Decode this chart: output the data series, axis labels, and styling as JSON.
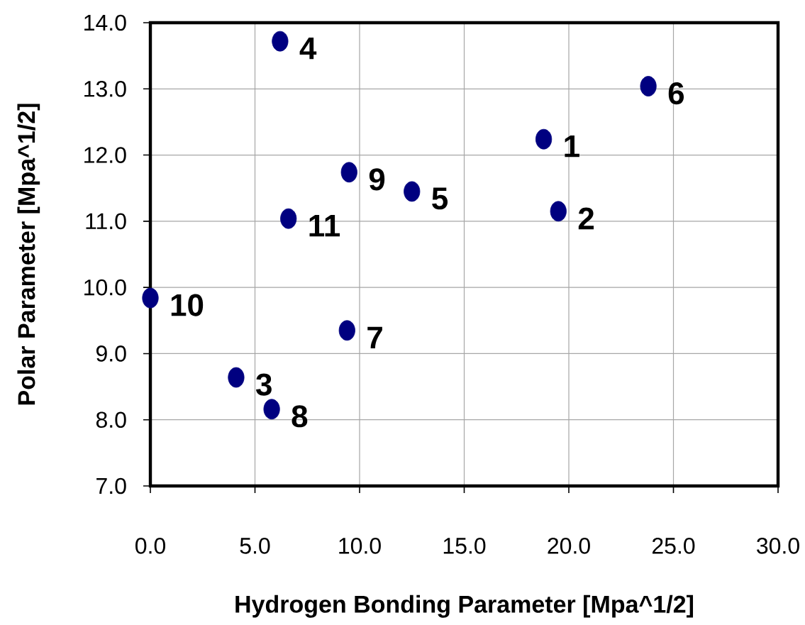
{
  "chart_data": {
    "type": "scatter",
    "xlabel": "Hydrogen Bonding Parameter [Mpa^1/2]",
    "ylabel": "Polar Parameter [Mpa^1/2]",
    "x": [
      18.8,
      19.5,
      4.1,
      6.2,
      12.5,
      23.8,
      9.4,
      5.8,
      9.5,
      0.0,
      6.6
    ],
    "series": [
      {
        "color": "#000080",
        "values": [
          12.24,
          11.15,
          8.64,
          13.72,
          11.45,
          13.04,
          9.35,
          8.16,
          11.74,
          9.84,
          11.04
        ]
      }
    ],
    "xlim": [
      0,
      30
    ],
    "ylim": [
      7,
      14
    ],
    "xticks": [
      {
        "value": 0,
        "label": "0.0"
      },
      {
        "value": 5,
        "label": "5.0"
      },
      {
        "value": 10,
        "label": "10.0"
      },
      {
        "value": 15,
        "label": "15.0"
      },
      {
        "value": 20,
        "label": "20.0"
      },
      {
        "value": 25,
        "label": "25.0"
      },
      {
        "value": 30,
        "label": "30.0"
      }
    ],
    "yticks": [
      {
        "value": 7,
        "label": "7.0"
      },
      {
        "value": 8,
        "label": "8.0"
      },
      {
        "value": 9,
        "label": "9.0"
      },
      {
        "value": 10,
        "label": "10.0"
      },
      {
        "value": 11,
        "label": "11.0"
      },
      {
        "value": 12,
        "label": "12.0"
      },
      {
        "value": 13,
        "label": "13.0"
      },
      {
        "value": 14,
        "label": "14.0"
      }
    ],
    "grid": true,
    "marker": "circle",
    "annotations": [
      {
        "text": "1",
        "x": 18.8,
        "y": 12.24
      },
      {
        "text": "2",
        "x": 19.5,
        "y": 11.15
      },
      {
        "text": "3",
        "x": 4.1,
        "y": 8.64
      },
      {
        "text": "4",
        "x": 6.2,
        "y": 13.72
      },
      {
        "text": "5",
        "x": 12.5,
        "y": 11.45
      },
      {
        "text": "6",
        "x": 23.8,
        "y": 13.04
      },
      {
        "text": "7",
        "x": 9.4,
        "y": 9.35
      },
      {
        "text": "8",
        "x": 5.8,
        "y": 8.16
      },
      {
        "text": "9",
        "x": 9.5,
        "y": 11.74
      },
      {
        "text": "10",
        "x": 0.0,
        "y": 9.84
      },
      {
        "text": "11",
        "x": 6.6,
        "y": 11.04
      }
    ]
  }
}
